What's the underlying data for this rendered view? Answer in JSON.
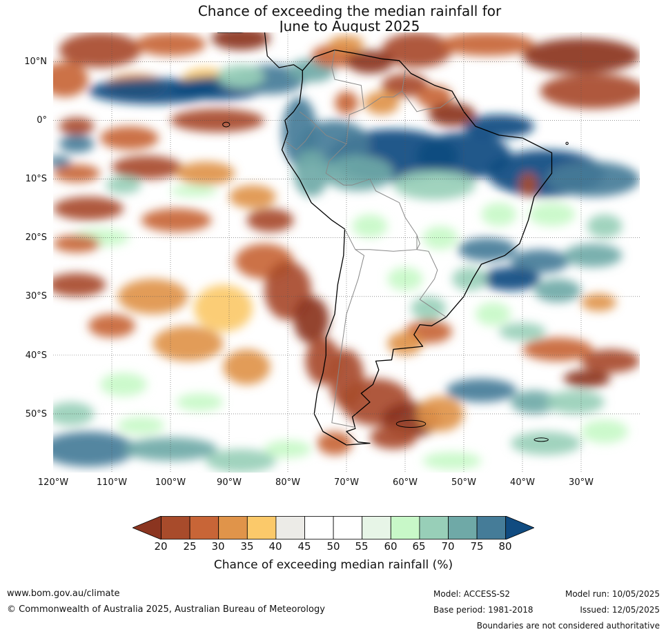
{
  "title": {
    "line1": "Chance of exceeding the median rainfall for",
    "line2": "June to August 2025"
  },
  "map": {
    "region": "South America and surrounding oceans",
    "projection": "equirectangular",
    "lon_range": [
      -120,
      -20
    ],
    "lat_range": [
      -60,
      15
    ],
    "lat_labels": [
      "10°N",
      "0°",
      "10°S",
      "20°S",
      "30°S",
      "40°S",
      "50°S"
    ],
    "lon_labels": [
      "120°W",
      "110°W",
      "100°W",
      "90°W",
      "80°W",
      "70°W",
      "60°W",
      "50°W",
      "40°W",
      "30°W"
    ],
    "gridlines": true,
    "features": [
      {
        "name": "Amazon basin / northern Brazil",
        "category": "75-80+"
      },
      {
        "name": "Eastern equatorial Pacific band",
        "category": "75-80+"
      },
      {
        "name": "Southern Chile and Patagonia",
        "category": "20-35"
      },
      {
        "name": "Venezuela / Guyana coast",
        "category": "20-30"
      },
      {
        "name": "Southern Ocean near 55°S",
        "category": "65-75"
      }
    ]
  },
  "colorbar": {
    "label": "Chance of exceeding median rainfall (%)",
    "ticks": [
      "20",
      "25",
      "30",
      "35",
      "40",
      "45",
      "50",
      "55",
      "60",
      "65",
      "70",
      "75",
      "80"
    ],
    "colors": [
      "#8b3520",
      "#a84b2b",
      "#c86537",
      "#e0944a",
      "#fbc96a",
      "#ecebe7",
      "#ffffff",
      "#ffffff",
      "#e7f5e7",
      "#c8f8c8",
      "#98cfb8",
      "#6fa9a7",
      "#457c98",
      "#104b80"
    ]
  },
  "footer": {
    "website": "www.bom.gov.au/climate",
    "copyright": "© Commonwealth of Australia 2025, Australian Bureau of Meteorology",
    "model": "Model: ACCESS-S2",
    "base_period": "Base period: 1981-2018",
    "model_run": "Model run: 10/05/2025",
    "issued": "Issued: 12/05/2025",
    "disclaimer": "Boundaries are not considered authoritative"
  }
}
